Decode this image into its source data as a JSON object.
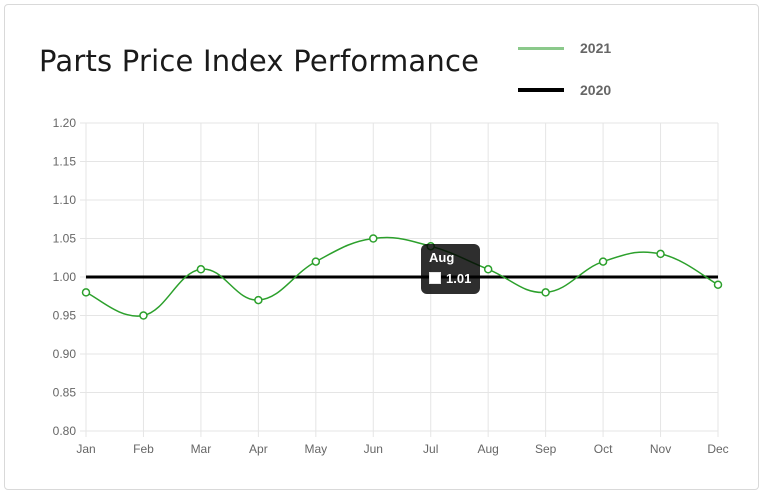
{
  "title": "Parts Price Index Performance",
  "colors": {
    "series_2021": "#2ca02c",
    "legend_2021": "#8bc98b",
    "series_2020": "#000000",
    "grid": "#e5e5e5"
  },
  "chart_data": {
    "type": "line",
    "title": "Parts Price Index Performance",
    "categories": [
      "Jan",
      "Feb",
      "Mar",
      "Apr",
      "May",
      "Jun",
      "Jul",
      "Aug",
      "Sep",
      "Oct",
      "Nov",
      "Dec"
    ],
    "series": [
      {
        "name": "2021",
        "values": [
          0.98,
          0.95,
          1.01,
          0.97,
          1.02,
          1.05,
          1.04,
          1.01,
          0.98,
          1.02,
          1.03,
          0.99
        ]
      },
      {
        "name": "2020",
        "values": [
          1.0,
          1.0,
          1.0,
          1.0,
          1.0,
          1.0,
          1.0,
          1.0,
          1.0,
          1.0,
          1.0,
          1.0
        ]
      }
    ],
    "yticks": [
      "0.80",
      "0.85",
      "0.90",
      "0.95",
      "1.00",
      "1.05",
      "1.10",
      "1.15",
      "1.20"
    ],
    "ylim": [
      0.8,
      1.2
    ],
    "grid": true,
    "legend_position": "top-right",
    "tooltip": {
      "title": "Aug",
      "value": "1.01"
    }
  }
}
